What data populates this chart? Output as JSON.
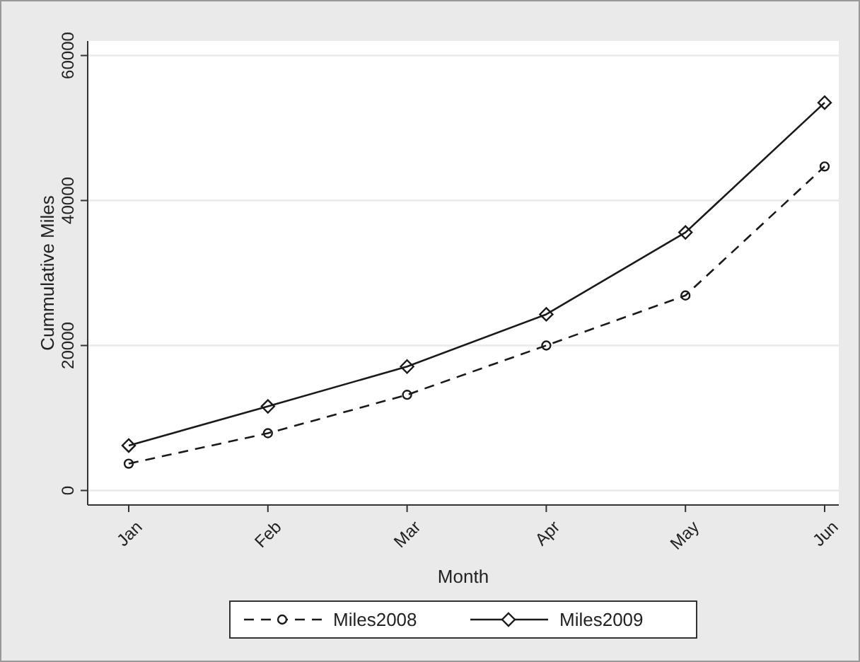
{
  "chart_data": {
    "type": "line",
    "xlabel": "Month",
    "ylabel": "Cummulative Miles",
    "categories": [
      "Jan",
      "Feb",
      "Mar",
      "Apr",
      "May",
      "Jun"
    ],
    "series": [
      {
        "name": "Miles2008",
        "color": "#1a1a1a",
        "values": [
          3700,
          7900,
          13200,
          20000,
          26900,
          44700
        ],
        "marker": "circle",
        "line_style": "dashed"
      },
      {
        "name": "Miles2009",
        "color": "#1a1a1a",
        "values": [
          6200,
          11600,
          17100,
          24300,
          35600,
          53500
        ],
        "marker": "diamond",
        "line_style": "solid"
      }
    ],
    "ylim": [
      -2000,
      62000
    ],
    "yticks": [
      0,
      20000,
      40000,
      60000
    ],
    "grid": "y",
    "legend": "bottom"
  }
}
